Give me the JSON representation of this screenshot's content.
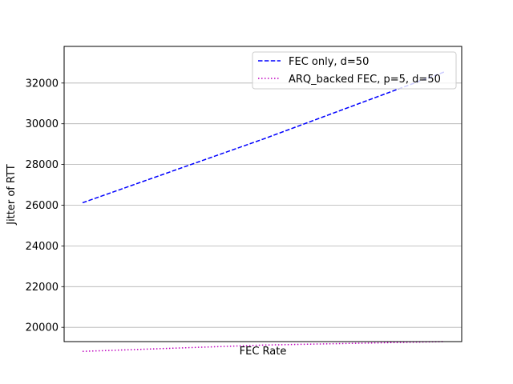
{
  "chart_data": {
    "type": "line",
    "title": "",
    "xlabel": "FEC Rate",
    "ylabel": "Jitter of RTT",
    "x": [
      0,
      1,
      2
    ],
    "ylim": [
      19300,
      33800
    ],
    "yticks": [
      20000,
      22000,
      24000,
      26000,
      28000,
      30000,
      32000
    ],
    "grid": "horizontal",
    "legend_position": "top-right",
    "series": [
      {
        "name": "FEC only, d=50",
        "values": [
          26120,
          29250,
          32540
        ],
        "color": "#0000ff",
        "style": "dashed"
      },
      {
        "name": "ARQ_backed FEC, p=5, d=50",
        "values": [
          18820,
          19130,
          19300
        ],
        "color": "#bf00bf",
        "style": "dotted"
      }
    ]
  }
}
